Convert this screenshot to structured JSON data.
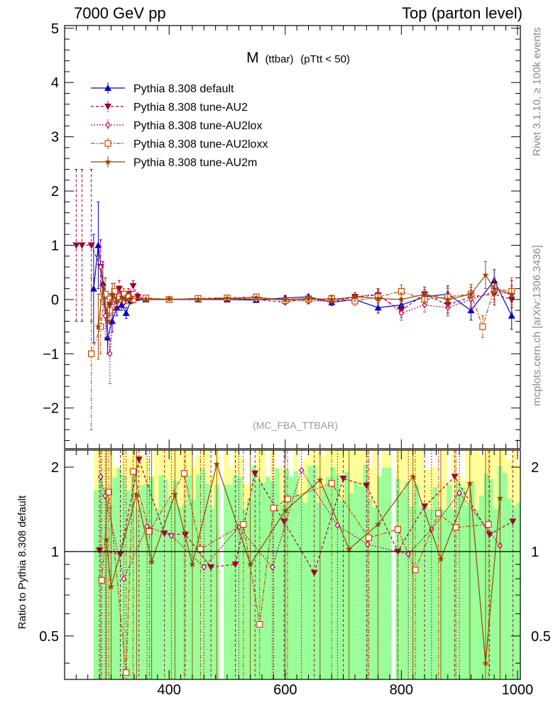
{
  "header": {
    "left": "7000 GeV pp",
    "right": "Top (parton level)"
  },
  "side": {
    "rivet": "Rivet 3.1.10, ≥ 100k events",
    "mcplots": "mcplots.cern.ch [arXiv:1306.3436]"
  },
  "ratio_label": "Ratio to Pythia 8.308 default",
  "chart_data": [
    {
      "type": "scatter",
      "title": "M (ttbar) (pTtt < 50)",
      "title_main": "M",
      "title_sub": "(ttbar)",
      "title_tail": "(pTtt < 50)",
      "analysis": "(MC_FBA_TTBAR)",
      "xlim": [
        220,
        1005
      ],
      "ylim": [
        -2.75,
        5.05
      ],
      "x_ticks": [
        400,
        600,
        800,
        1000
      ],
      "y_ticks": [
        -2,
        -1,
        0,
        1,
        2,
        3,
        4,
        5
      ],
      "y_tick_labels": [
        "−2",
        "−1",
        "0",
        "1",
        "2",
        "3",
        "4",
        "5"
      ],
      "legend_position": "top-left",
      "series": [
        {
          "name": "Pythia 8.308 default",
          "color": "#0000cc",
          "marker": "triangle-up",
          "line": "solid",
          "x": [
            270,
            278,
            286,
            294,
            302,
            310,
            318,
            326,
            334,
            360,
            400,
            450,
            500,
            550,
            600,
            640,
            680,
            720,
            760,
            800,
            840,
            880,
            920,
            960,
            990
          ],
          "y": [
            0.2,
            1.0,
            0.3,
            -0.7,
            -0.4,
            -0.15,
            -0.1,
            -0.25,
            -0.02,
            0.0,
            0.0,
            0.0,
            0.0,
            -0.01,
            0.03,
            0.05,
            -0.05,
            0.0,
            -0.15,
            -0.1,
            0.05,
            0.1,
            -0.2,
            0.35,
            -0.3
          ],
          "err": [
            1.0,
            0.8,
            0.4,
            0.3,
            0.2,
            0.15,
            0.1,
            0.1,
            0.06,
            0.03,
            0.02,
            0.02,
            0.02,
            0.03,
            0.04,
            0.05,
            0.06,
            0.08,
            0.1,
            0.12,
            0.13,
            0.15,
            0.18,
            0.2,
            0.25
          ]
        },
        {
          "name": "Pythia 8.308 tune-AU2",
          "color": "#990033",
          "marker": "triangle-down",
          "line": "dashed",
          "x": [
            240,
            250,
            266,
            282,
            290,
            298,
            306,
            314,
            322,
            330,
            338,
            346,
            360,
            400,
            450,
            500,
            550,
            600,
            640,
            680,
            720,
            760,
            800,
            840,
            880,
            920,
            960,
            990
          ],
          "y": [
            1.0,
            1.0,
            1.0,
            0.6,
            0.1,
            -0.1,
            0.15,
            0.2,
            0.0,
            0.1,
            0.25,
            0.05,
            0.02,
            0.0,
            0.02,
            0.03,
            0.0,
            -0.05,
            0.02,
            -0.05,
            0.05,
            0.08,
            -0.2,
            0.1,
            -0.1,
            0.05,
            0.1,
            0.0
          ],
          "err": [
            1.4,
            1.4,
            1.4,
            0.5,
            0.3,
            0.2,
            0.15,
            0.15,
            0.1,
            0.1,
            0.1,
            0.07,
            0.04,
            0.02,
            0.02,
            0.03,
            0.03,
            0.04,
            0.05,
            0.06,
            0.08,
            0.1,
            0.13,
            0.13,
            0.15,
            0.18,
            0.2,
            0.25
          ]
        },
        {
          "name": "Pythia 8.308 tune-AU2lox",
          "color": "#bb0055",
          "marker": "diamond",
          "line": "dotted",
          "x": [
            282,
            290,
            298,
            306,
            314,
            322,
            330,
            338,
            360,
            400,
            450,
            500,
            550,
            600,
            640,
            680,
            720,
            760,
            800,
            840,
            880,
            920,
            960,
            990
          ],
          "y": [
            0.6,
            -0.3,
            -1.0,
            0.0,
            0.1,
            -0.05,
            0.05,
            0.0,
            0.02,
            0.0,
            0.01,
            0.02,
            0.0,
            0.0,
            -0.03,
            -0.02,
            0.05,
            0.1,
            -0.25,
            -0.1,
            -0.15,
            0.0,
            0.15,
            0.1
          ],
          "err": [
            0.5,
            0.4,
            0.55,
            0.2,
            0.15,
            0.1,
            0.08,
            0.06,
            0.04,
            0.02,
            0.02,
            0.02,
            0.03,
            0.04,
            0.05,
            0.06,
            0.08,
            0.1,
            0.13,
            0.13,
            0.15,
            0.18,
            0.2,
            0.25
          ]
        },
        {
          "name": "Pythia 8.308 tune-AU2loxx",
          "color": "#cc4400",
          "marker": "square-open",
          "line": "dashdot",
          "x": [
            266,
            282,
            290,
            298,
            306,
            314,
            322,
            330,
            338,
            360,
            400,
            450,
            500,
            550,
            600,
            640,
            680,
            720,
            760,
            800,
            840,
            880,
            920,
            940,
            960,
            990
          ],
          "y": [
            -1.0,
            -0.5,
            0.1,
            -0.2,
            0.15,
            0.05,
            0.1,
            0.05,
            0.0,
            0.03,
            0.0,
            0.02,
            0.03,
            0.05,
            -0.02,
            0.0,
            0.02,
            -0.03,
            0.05,
            0.15,
            0.0,
            0.05,
            0.1,
            -0.5,
            0.2,
            0.15
          ],
          "err": [
            1.4,
            0.5,
            0.3,
            0.2,
            0.15,
            0.1,
            0.1,
            0.07,
            0.06,
            0.04,
            0.02,
            0.02,
            0.02,
            0.03,
            0.04,
            0.05,
            0.06,
            0.08,
            0.1,
            0.12,
            0.13,
            0.15,
            0.18,
            0.2,
            0.2,
            0.25
          ]
        },
        {
          "name": "Pythia 8.308 tune-AU2m",
          "color": "#994400",
          "marker": "star",
          "line": "solid",
          "x": [
            278,
            286,
            294,
            302,
            310,
            318,
            326,
            334,
            360,
            400,
            450,
            500,
            550,
            600,
            640,
            680,
            720,
            760,
            800,
            840,
            880,
            920,
            945,
            960,
            990
          ],
          "y": [
            -0.5,
            0.25,
            -0.4,
            0.1,
            -0.05,
            0.05,
            0.0,
            0.02,
            0.0,
            0.01,
            0.0,
            0.02,
            0.03,
            0.0,
            0.02,
            0.0,
            0.05,
            0.02,
            0.0,
            0.1,
            0.0,
            0.1,
            0.45,
            0.2,
            0.1
          ],
          "err": [
            0.6,
            0.35,
            0.3,
            0.2,
            0.15,
            0.1,
            0.08,
            0.06,
            0.04,
            0.02,
            0.02,
            0.02,
            0.03,
            0.04,
            0.05,
            0.06,
            0.08,
            0.1,
            0.12,
            0.13,
            0.15,
            0.18,
            0.25,
            0.2,
            0.25
          ]
        }
      ]
    },
    {
      "type": "line",
      "title": "",
      "ylabel": "Ratio to Pythia 8.308 default",
      "xlim": [
        220,
        1005
      ],
      "ylim": [
        0.35,
        2.3
      ],
      "x_ticks": [
        400,
        600,
        800,
        1000
      ],
      "y_ticks": [
        0.5,
        1,
        2
      ],
      "reference_line": 1,
      "uncertainty_band": {
        "colors": {
          "stat": "#99ff99",
          "total": "#ffff99"
        },
        "x_from": 270,
        "x_to": 1000,
        "gaps": [
          [
            484,
            494
          ],
          [
            782,
            786
          ]
        ]
      },
      "series": [
        {
          "name": "Pythia 8.308 tune-AU2",
          "color": "#990033",
          "marker": "triangle-down",
          "line": "dashed",
          "x": [
            280,
            316,
            348,
            392,
            428,
            472,
            514,
            548,
            598,
            650,
            700,
            740,
            794,
            840,
            892,
            952,
            992
          ],
          "y": [
            1.01,
            0.98,
            2.13,
            1.16,
            1.15,
            0.88,
            0.9,
            1.9,
            1.28,
            0.84,
            1.82,
            1.72,
            1.0,
            1.45,
            1.85,
            1.15,
            1.28
          ]
        },
        {
          "name": "Pythia 8.308 tune-AU2lox",
          "color": "#bb0055",
          "marker": "diamond",
          "line": "dotted",
          "x": [
            282,
            290,
            322,
            362,
            404,
            460,
            520,
            578,
            628,
            690,
            742,
            812,
            852,
            900,
            970
          ],
          "y": [
            1.85,
            1.58,
            0.8,
            1.23,
            1.14,
            0.88,
            1.22,
            0.88,
            1.95,
            1.24,
            1.06,
            0.98,
            1.2,
            1.62,
            1.05
          ]
        },
        {
          "name": "Pythia 8.308 tune-AU2loxx",
          "color": "#cc4400",
          "marker": "square-open",
          "line": "dashdot",
          "x": [
            284,
            296,
            326,
            338,
            366,
            426,
            454,
            528,
            556,
            580,
            604,
            680,
            744,
            794,
            824,
            864,
            894,
            950
          ],
          "y": [
            0.79,
            1.63,
            0.37,
            1.93,
            1.18,
            1.9,
            1.02,
            1.25,
            0.55,
            1.43,
            1.54,
            1.75,
            1.12,
            1.2,
            0.86,
            1.37,
            1.22,
            1.25
          ]
        },
        {
          "name": "Pythia 8.308 tune-AU2m",
          "color": "#994400",
          "marker": "star",
          "line": "solid",
          "x": [
            292,
            300,
            344,
            370,
            410,
            440,
            482,
            540,
            600,
            660,
            710,
            760,
            820,
            868,
            918,
            945,
            970
          ],
          "y": [
            1.1,
            0.75,
            1.6,
            0.92,
            1.6,
            0.9,
            2.05,
            0.9,
            1.4,
            1.8,
            1.02,
            1.25,
            1.85,
            0.94,
            1.75,
            0.4,
            1.55
          ]
        }
      ]
    }
  ]
}
